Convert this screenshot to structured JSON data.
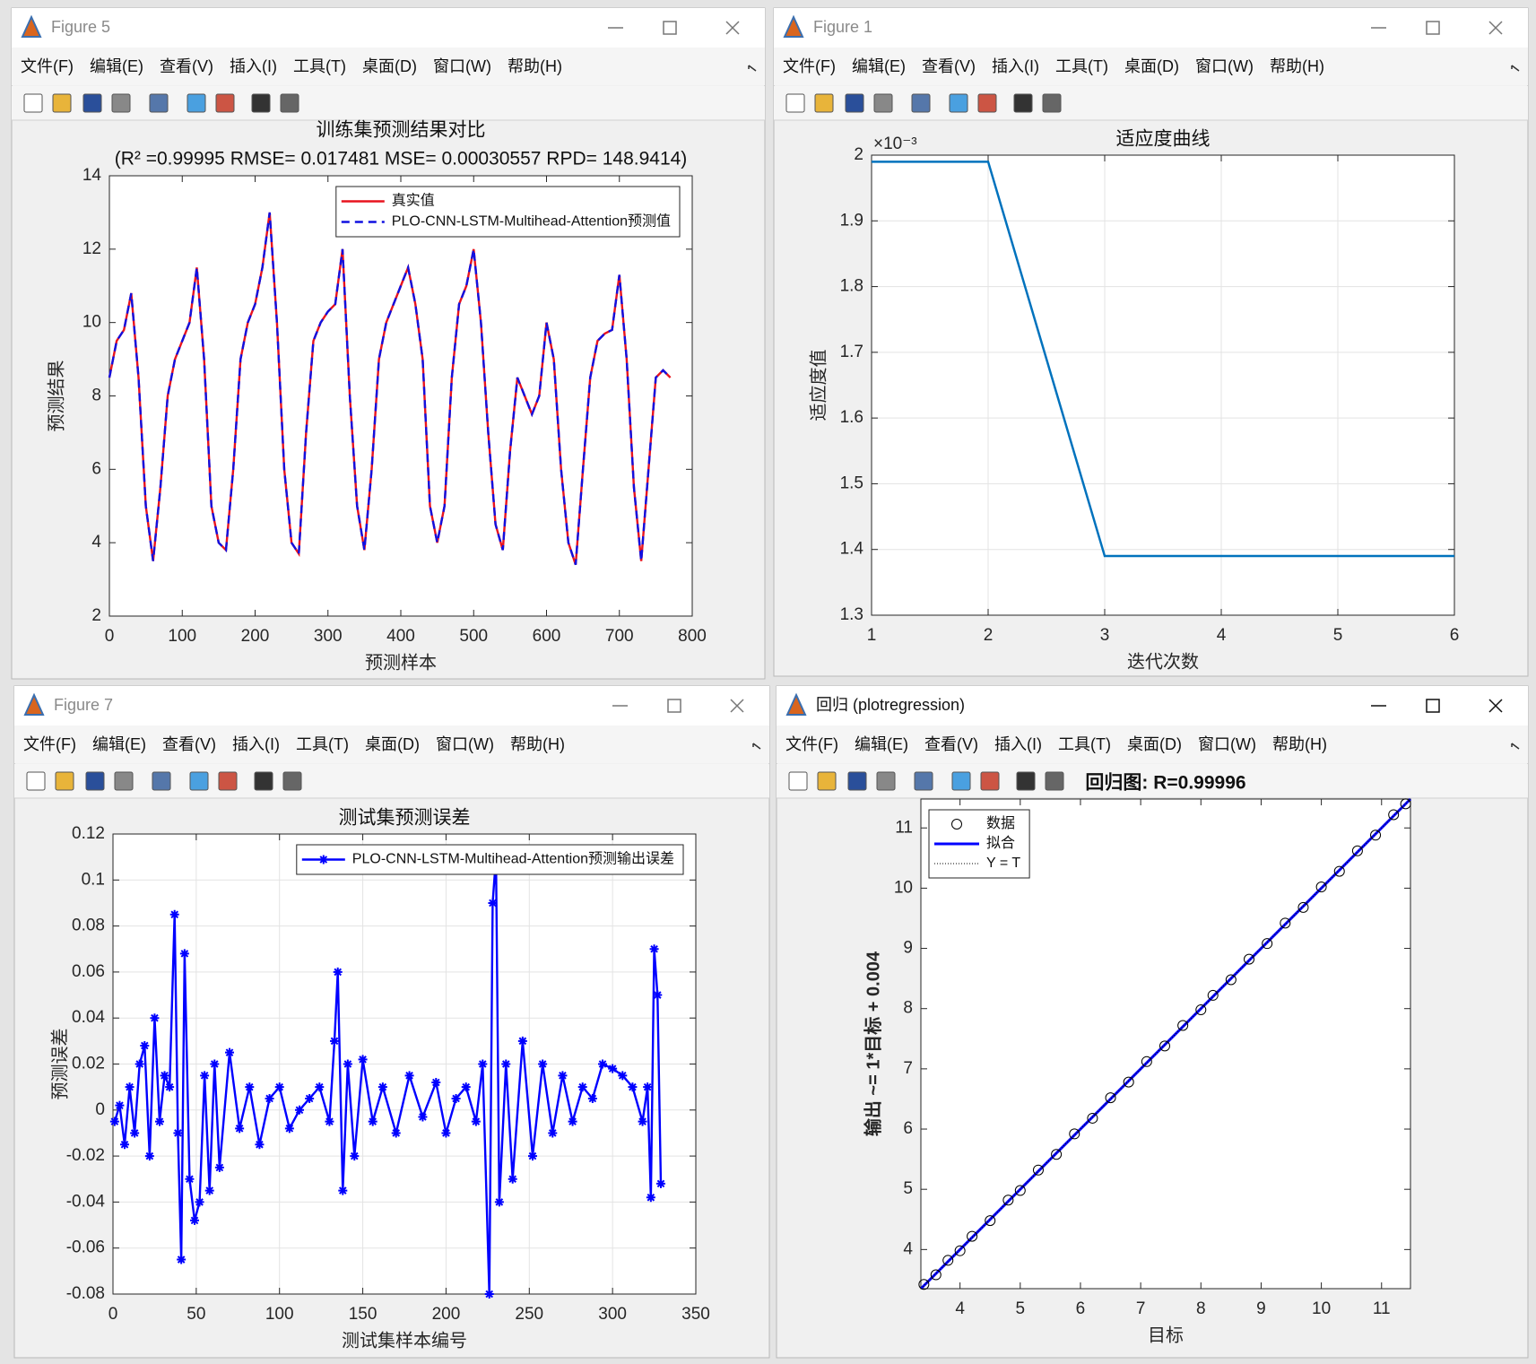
{
  "windows": [
    {
      "title": "Figure 5",
      "menus": [
        "文件(F)",
        "编辑(E)",
        "查看(V)",
        "插入(I)",
        "工具(T)",
        "桌面(D)",
        "窗口(W)",
        "帮助(H)"
      ]
    },
    {
      "title": "Figure 1",
      "menus": [
        "文件(F)",
        "编辑(E)",
        "查看(V)",
        "插入(I)",
        "工具(T)",
        "桌面(D)",
        "窗口(W)",
        "帮助(H)"
      ]
    },
    {
      "title": "Figure 7",
      "menus": [
        "文件(F)",
        "编辑(E)",
        "查看(V)",
        "插入(I)",
        "工具(T)",
        "桌面(D)",
        "窗口(W)",
        "帮助(H)"
      ]
    },
    {
      "title": "回归 (plotregression)",
      "menus": [
        "文件(F)",
        "编辑(E)",
        "查看(V)",
        "插入(I)",
        "工具(T)",
        "桌面(D)",
        "窗口(W)",
        "帮助(H)"
      ]
    }
  ],
  "chart_data": [
    {
      "type": "line",
      "title": "训练集预测结果对比",
      "subtitle": "(R² =0.99995 RMSE= 0.017481 MSE= 0.00030557 RPD= 148.9414)",
      "xlabel": "预测样本",
      "ylabel": "预测结果",
      "x": [
        0,
        10,
        20,
        30,
        40,
        50,
        60,
        70,
        80,
        90,
        100,
        110,
        120,
        130,
        140,
        150,
        160,
        170,
        180,
        190,
        200,
        210,
        220,
        230,
        240,
        250,
        260,
        270,
        280,
        290,
        300,
        310,
        320,
        330,
        340,
        350,
        360,
        370,
        380,
        390,
        400,
        410,
        420,
        430,
        440,
        450,
        460,
        470,
        480,
        490,
        500,
        510,
        520,
        530,
        540,
        550,
        560,
        570,
        580,
        590,
        600,
        610,
        620,
        630,
        640,
        650,
        660,
        670,
        680,
        690,
        700,
        710,
        720,
        730,
        740,
        750,
        760,
        770
      ],
      "series": [
        {
          "name": "真实值",
          "color": "#e8141e",
          "linestyle": "solid",
          "values": [
            8.5,
            9.5,
            9.8,
            10.8,
            8.5,
            5,
            3.5,
            5.5,
            8,
            9,
            9.5,
            10,
            11.5,
            9,
            5,
            4,
            3.8,
            6,
            9,
            10,
            10.5,
            11.5,
            13,
            10,
            6,
            4,
            3.7,
            7,
            9.5,
            10,
            10.3,
            10.5,
            12,
            8,
            5,
            3.8,
            6,
            9,
            10,
            10.5,
            11,
            11.5,
            10.5,
            9,
            5,
            4,
            5,
            8.5,
            10.5,
            11,
            12,
            10,
            7,
            4.5,
            3.8,
            6.5,
            8.5,
            8,
            7.5,
            8,
            10,
            9,
            6,
            4,
            3.4,
            6,
            8.5,
            9.5,
            9.7,
            9.8,
            11.3,
            9,
            5.5,
            3.5,
            6,
            8.5,
            8.7,
            8.5
          ]
        },
        {
          "name": "PLO-CNN-LSTM-Multihead-Attention预测值",
          "color": "#1010e0",
          "linestyle": "dashed",
          "values": [
            8.5,
            9.5,
            9.8,
            10.8,
            8.5,
            5,
            3.5,
            5.5,
            8,
            9,
            9.5,
            10,
            11.5,
            9,
            5,
            4,
            3.8,
            6,
            9,
            10,
            10.5,
            11.5,
            13,
            10,
            6,
            4,
            3.7,
            7,
            9.5,
            10,
            10.3,
            10.5,
            12,
            8,
            5,
            3.8,
            6,
            9,
            10,
            10.5,
            11,
            11.5,
            10.5,
            9,
            5,
            4,
            5,
            8.5,
            10.5,
            11,
            12,
            10,
            7,
            4.5,
            3.8,
            6.5,
            8.5,
            8,
            7.5,
            8,
            10,
            9,
            6,
            4,
            3.4,
            6,
            8.5,
            9.5,
            9.7,
            9.8,
            11.3,
            9,
            5.5,
            3.5,
            6,
            8.5,
            8.7,
            8.5
          ]
        }
      ],
      "xlim": [
        0,
        800
      ],
      "xticks": [
        0,
        100,
        200,
        300,
        400,
        500,
        600,
        700,
        800
      ],
      "ylim": [
        2,
        14
      ],
      "yticks": [
        2,
        4,
        6,
        8,
        10,
        12,
        14
      ],
      "grid": false,
      "legend_position": "upper right"
    },
    {
      "type": "line",
      "title": "适应度曲线",
      "xlabel": "迭代次数",
      "ylabel": "适应度值",
      "y_exponent": "×10⁻³",
      "x": [
        1,
        2,
        3,
        4,
        5,
        6
      ],
      "series": [
        {
          "name": "适应度",
          "color": "#0072bd",
          "linestyle": "solid",
          "values": [
            1.99,
            1.99,
            1.39,
            1.39,
            1.39,
            1.39
          ]
        }
      ],
      "xlim": [
        1,
        6
      ],
      "xticks": [
        1,
        2,
        3,
        4,
        5,
        6
      ],
      "ylim": [
        1.3,
        2
      ],
      "yticks": [
        1.3,
        1.4,
        1.5,
        1.6,
        1.7,
        1.8,
        1.9,
        2
      ],
      "grid": true,
      "legend": false
    },
    {
      "type": "line",
      "title": "测试集预测误差",
      "xlabel": "测试集样本编号",
      "ylabel": "预测误差",
      "x": [
        1,
        4,
        7,
        10,
        13,
        16,
        19,
        22,
        25,
        28,
        31,
        34,
        37,
        39,
        41,
        43,
        46,
        49,
        52,
        55,
        58,
        61,
        64,
        70,
        76,
        82,
        88,
        94,
        100,
        106,
        112,
        118,
        124,
        130,
        133,
        135,
        138,
        141,
        145,
        150,
        156,
        162,
        170,
        178,
        186,
        194,
        200,
        206,
        212,
        218,
        222,
        226,
        228,
        230,
        232,
        236,
        240,
        246,
        252,
        258,
        264,
        270,
        276,
        282,
        288,
        294,
        300,
        306,
        312,
        318,
        321,
        323,
        325,
        327,
        329
      ],
      "series": [
        {
          "name": "PLO-CNN-LSTM-Multihead-Attention预测输出误差",
          "color": "#0000ff",
          "linestyle": "solid",
          "marker": "*",
          "values": [
            -0.005,
            0.002,
            -0.015,
            0.01,
            -0.01,
            0.02,
            0.028,
            -0.02,
            0.04,
            -0.005,
            0.015,
            0.01,
            0.085,
            -0.01,
            -0.065,
            0.068,
            -0.03,
            -0.048,
            -0.04,
            0.015,
            -0.035,
            0.02,
            -0.025,
            0.025,
            -0.008,
            0.01,
            -0.015,
            0.005,
            0.01,
            -0.008,
            0.0,
            0.005,
            0.01,
            -0.005,
            0.03,
            0.06,
            -0.035,
            0.02,
            -0.02,
            0.022,
            -0.005,
            0.01,
            -0.01,
            0.015,
            -0.003,
            0.012,
            -0.01,
            0.005,
            0.01,
            -0.005,
            0.02,
            -0.08,
            0.09,
            0.11,
            -0.04,
            0.02,
            -0.03,
            0.03,
            -0.02,
            0.02,
            -0.01,
            0.015,
            -0.005,
            0.01,
            0.005,
            0.02,
            0.018,
            0.015,
            0.01,
            -0.005,
            0.01,
            -0.038,
            0.07,
            0.05,
            -0.032
          ]
        }
      ],
      "xlim": [
        0,
        350
      ],
      "xticks": [
        0,
        50,
        100,
        150,
        200,
        250,
        300,
        350
      ],
      "ylim": [
        -0.08,
        0.12
      ],
      "yticks": [
        -0.08,
        -0.06,
        -0.04,
        -0.02,
        0,
        0.02,
        0.04,
        0.06,
        0.08,
        0.1,
        0.12
      ],
      "grid": true,
      "legend_position": "upper right"
    },
    {
      "type": "scatter",
      "title": "回归图: R=0.99996",
      "xlabel": "目标",
      "ylabel": "输出 ~= 1*目标 + 0.004",
      "x": [
        3.4,
        3.6,
        3.8,
        4.0,
        4.2,
        4.5,
        4.8,
        5.0,
        5.3,
        5.6,
        5.9,
        6.2,
        6.5,
        6.8,
        7.1,
        7.4,
        7.7,
        8.0,
        8.2,
        8.5,
        8.8,
        9.1,
        9.4,
        9.7,
        10.0,
        10.3,
        10.6,
        10.9,
        11.2,
        11.4
      ],
      "values": [
        3.42,
        3.58,
        3.82,
        3.98,
        4.22,
        4.48,
        4.82,
        4.98,
        5.32,
        5.58,
        5.92,
        6.18,
        6.52,
        6.78,
        7.12,
        7.38,
        7.72,
        7.98,
        8.22,
        8.48,
        8.82,
        9.08,
        9.42,
        9.68,
        10.02,
        10.28,
        10.62,
        10.88,
        11.22,
        11.4
      ],
      "legend_entries": [
        "数据",
        "拟合",
        "Y = T"
      ],
      "legend_position": "upper left",
      "xlim": [
        3.35,
        11.48
      ],
      "xticks": [
        4,
        5,
        6,
        7,
        8,
        9,
        10,
        11
      ],
      "ylim": [
        3.35,
        11.48
      ],
      "yticks": [
        4,
        5,
        6,
        7,
        8,
        9,
        10,
        11
      ],
      "grid": false
    }
  ]
}
